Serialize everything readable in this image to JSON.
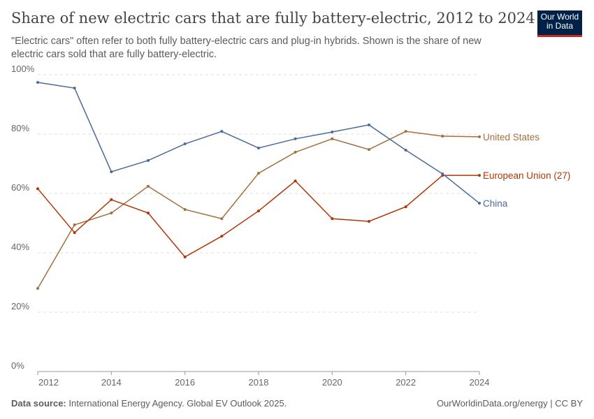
{
  "header": {
    "title": "Share of new electric cars that are fully battery-electric, 2012 to 2024",
    "subtitle": "\"Electric cars\" often refer to both fully battery-electric cars and plug-in hybrids. Shown is the share of new electric cars sold that are fully battery-electric.",
    "logo": "Our World in Data"
  },
  "footer": {
    "source_label": "Data source:",
    "source_text": "International Energy Agency. Global EV Outlook 2025.",
    "credit": "OurWorldinData.org/energy | CC BY"
  },
  "chart_data": {
    "type": "line",
    "title": "Share of new electric cars that are fully battery-electric, 2012 to 2024",
    "xlabel": "",
    "ylabel": "",
    "xlim": [
      2012,
      2024
    ],
    "ylim": [
      0,
      100
    ],
    "x_ticks": [
      "2012",
      "2014",
      "2016",
      "2018",
      "2020",
      "2022",
      "2024"
    ],
    "y_ticks": [
      "0%",
      "20%",
      "40%",
      "60%",
      "80%",
      "100%"
    ],
    "grid": "horizontal dashed",
    "legend": "right, inline labels",
    "x": [
      2012,
      2013,
      2014,
      2015,
      2016,
      2017,
      2018,
      2019,
      2020,
      2021,
      2022,
      2023,
      2024
    ],
    "series": [
      {
        "name": "United States",
        "color": "#a2703e",
        "values": [
          28.0,
          49.4,
          53.4,
          62.4,
          54.6,
          51.5,
          66.8,
          73.9,
          78.4,
          74.8,
          80.9,
          79.3,
          79.1
        ]
      },
      {
        "name": "European Union (27)",
        "color": "#b13507",
        "values": [
          61.6,
          46.8,
          57.9,
          53.4,
          38.6,
          45.6,
          54.1,
          64.2,
          51.5,
          50.6,
          55.5,
          66.1,
          66.1
        ]
      },
      {
        "name": "China",
        "color": "#4c6a9c",
        "values": [
          97.4,
          95.5,
          67.3,
          71.1,
          76.7,
          80.9,
          75.3,
          78.4,
          80.7,
          83.1,
          74.6,
          66.6,
          56.7
        ]
      }
    ]
  }
}
